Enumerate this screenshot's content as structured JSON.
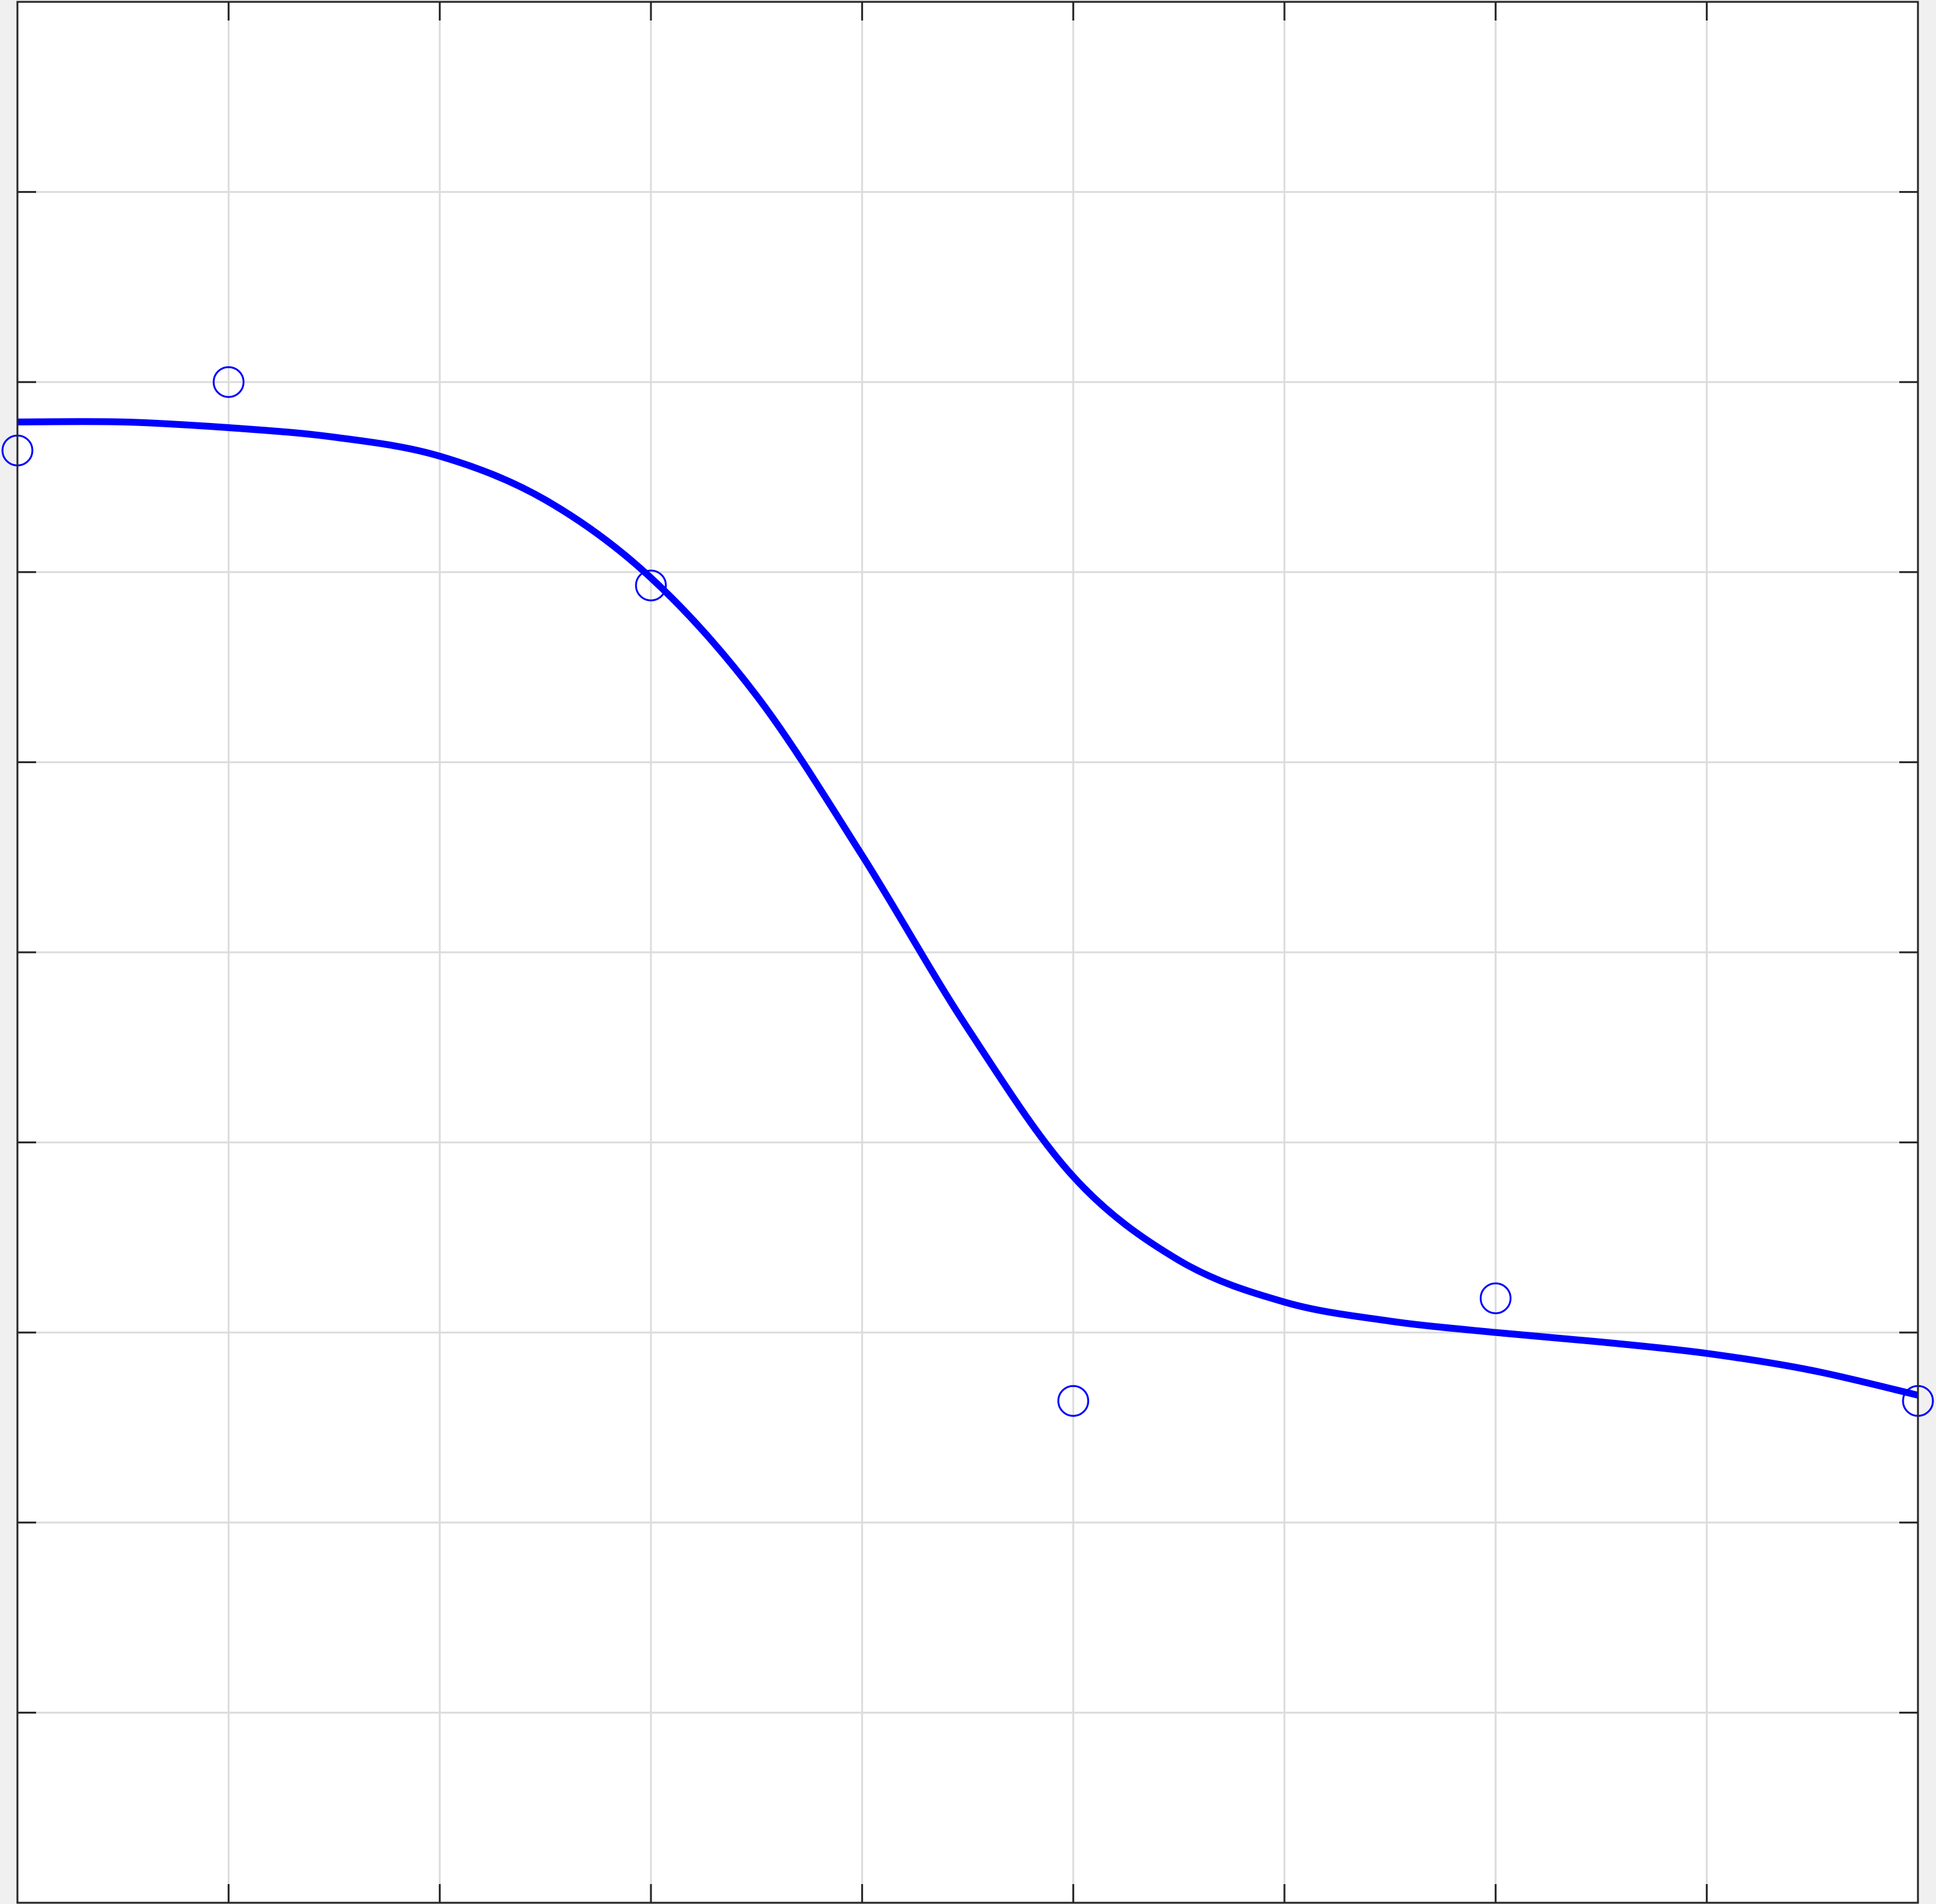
{
  "chart_data": {
    "type": "line",
    "title": "",
    "xlabel": "",
    "ylabel": "",
    "xlim": [
      0,
      9
    ],
    "ylim": [
      0,
      10
    ],
    "grid": true,
    "tick_labels_shown": false,
    "x_ticks": [
      0,
      1,
      2,
      3,
      4,
      5,
      6,
      7,
      8,
      9
    ],
    "y_ticks": [
      0,
      1,
      2,
      3,
      4,
      5,
      6,
      7,
      8,
      9,
      10
    ],
    "series": [
      {
        "style": "markers",
        "marker": "circle-open",
        "color": "#0000ff",
        "x": [
          0,
          1,
          3,
          5,
          7,
          9
        ],
        "y": [
          7.64,
          8.0,
          6.93,
          2.64,
          3.18,
          2.64
        ]
      },
      {
        "style": "line",
        "color": "#0000ff",
        "x": [
          0,
          0.5,
          1,
          1.5,
          2,
          2.5,
          3,
          3.5,
          4,
          4.5,
          5,
          5.5,
          6,
          6.5,
          7,
          7.5,
          8,
          8.5,
          9
        ],
        "y": [
          7.79,
          7.79,
          7.76,
          7.71,
          7.61,
          7.38,
          6.97,
          6.35,
          5.51,
          4.6,
          3.82,
          3.38,
          3.16,
          3.06,
          3.0,
          2.95,
          2.89,
          2.8,
          2.67
        ]
      }
    ]
  }
}
